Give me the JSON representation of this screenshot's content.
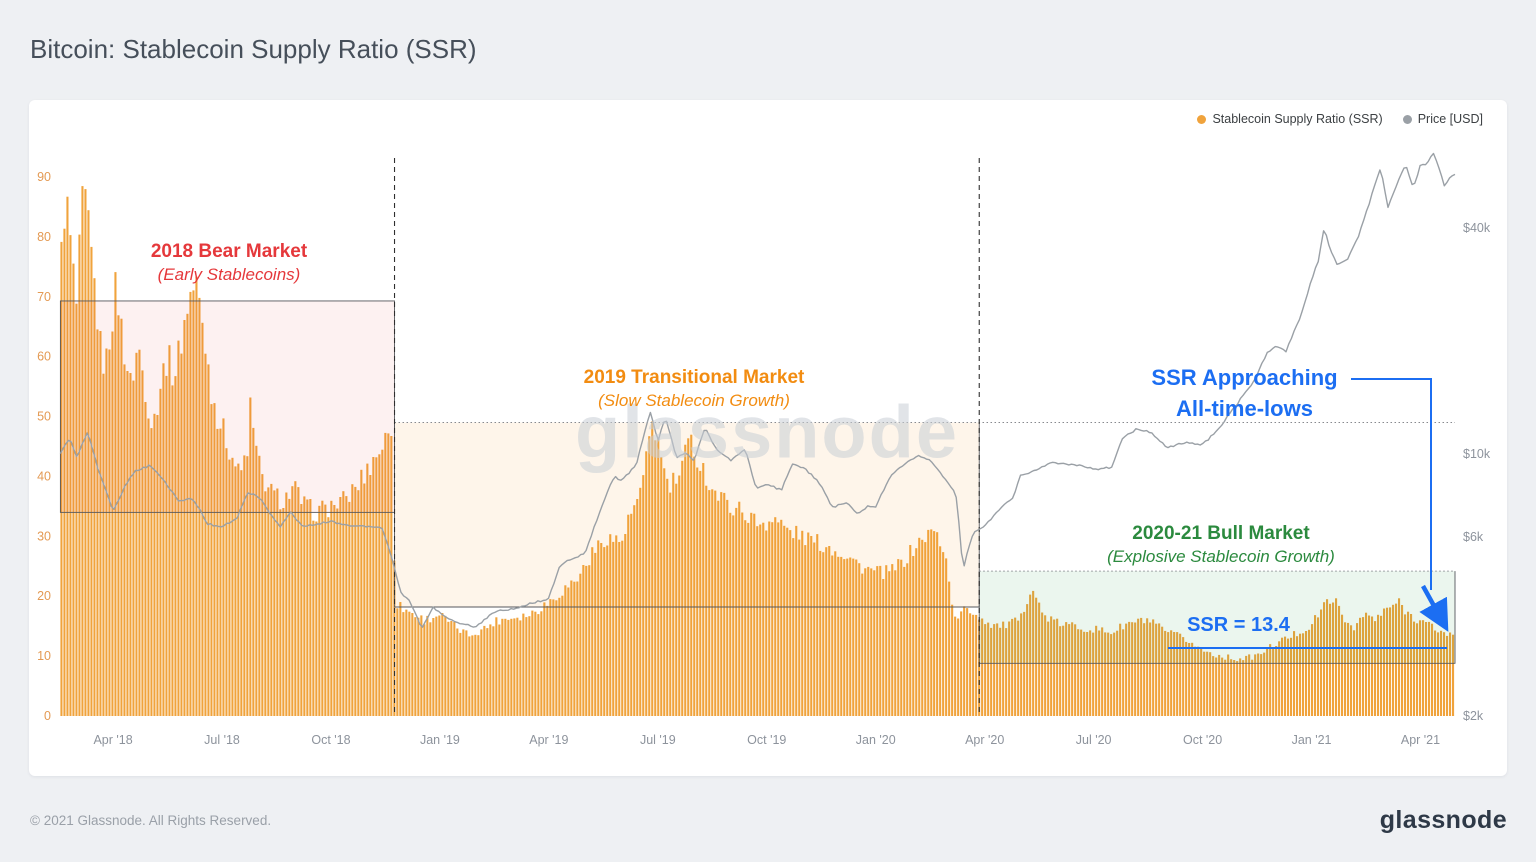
{
  "page": {
    "title": "Bitcoin: Stablecoin Supply Ratio (SSR)",
    "watermark": "glassnode",
    "footer_copyright": "© 2021 Glassnode. All Rights Reserved.",
    "footer_brand": "glassnode"
  },
  "legend": [
    {
      "label": "Stablecoin Supply Ratio (SSR)",
      "color": "#f0a33c"
    },
    {
      "label": "Price [USD]",
      "color": "#9aa0a6"
    }
  ],
  "annotations": {
    "bear_title": "2018 Bear Market",
    "bear_sub": "(Early Stablecoins)",
    "bear_color": "#e5383b",
    "transitional_title": "2019 Transitional Market",
    "transitional_sub": "(Slow Stablecoin Growth)",
    "transitional_color": "#f28c11",
    "bull_title": "2020-21 Bull Market",
    "bull_sub": "(Explosive Stablecoin Growth)",
    "bull_color": "#2b8a3e",
    "ssr_approaching_line1": "SSR Approaching",
    "ssr_approaching_line2": "All-time-lows",
    "ssr_value": "SSR = 13.4",
    "callout_color": "#1c6ef2"
  },
  "chart_data": {
    "type": [
      "bar",
      "line"
    ],
    "title": "Bitcoin: Stablecoin Supply Ratio (SSR)",
    "x_axis": {
      "unit": "months_since_2018-01",
      "range": [
        1.55,
        39.95
      ],
      "ticks": [
        {
          "t": 3,
          "label": "Apr '18"
        },
        {
          "t": 6,
          "label": "Jul '18"
        },
        {
          "t": 9,
          "label": "Oct '18"
        },
        {
          "t": 12,
          "label": "Jan '19"
        },
        {
          "t": 15,
          "label": "Apr '19"
        },
        {
          "t": 18,
          "label": "Jul '19"
        },
        {
          "t": 21,
          "label": "Oct '19"
        },
        {
          "t": 24,
          "label": "Jan '20"
        },
        {
          "t": 27,
          "label": "Apr '20"
        },
        {
          "t": 30,
          "label": "Jul '20"
        },
        {
          "t": 33,
          "label": "Oct '20"
        },
        {
          "t": 36,
          "label": "Jan '21"
        },
        {
          "t": 39,
          "label": "Apr '21"
        }
      ]
    },
    "y_left": {
      "label": "Stablecoin Supply Ratio (SSR)",
      "range": [
        0,
        90
      ],
      "ticks": [
        0,
        10,
        20,
        30,
        40,
        50,
        60,
        70,
        80,
        90
      ],
      "color": "#e49a53"
    },
    "y_right": {
      "label": "Price [USD]",
      "scale": "log",
      "ticks": [
        {
          "usd": 2000,
          "label": "$2k"
        },
        {
          "usd": 6000,
          "label": "$6k"
        },
        {
          "usd": 10000,
          "label": "$10k"
        },
        {
          "usd": 40000,
          "label": "$40k"
        }
      ],
      "color": "#8d939c"
    },
    "grid": false,
    "legend_position": "top-right",
    "vlines": [
      10.75,
      26.85
    ],
    "dotted_hlines": [
      {
        "v": 49,
        "t0": 10.75,
        "t1": 39.95
      },
      {
        "v": 24.2,
        "t0": 26.85,
        "t1": 39.95
      }
    ],
    "regions": [
      {
        "label": "2018 Bear Market (Early Stablecoins)",
        "t0": 1.55,
        "t1": 10.75,
        "v0": 34,
        "v1": 69.3,
        "fill": "rgba(230,60,60,0.07)",
        "top": "solid"
      },
      {
        "label": "2019 Transitional Market (Slow Stablecoin Growth)",
        "t0": 10.75,
        "t1": 26.85,
        "v0": 18.2,
        "v1": 49,
        "fill": "rgba(242,160,50,0.10)",
        "top": "dotted"
      },
      {
        "label": "2020-21 Bull Market (Explosive Stablecoin Growth)",
        "t0": 26.85,
        "t1": 39.95,
        "v0": 8.8,
        "v1": 24.2,
        "fill": "rgba(60,170,90,0.10)",
        "top": "dotted"
      }
    ],
    "series": [
      {
        "name": "Stablecoin Supply Ratio (SSR)",
        "type": "bar",
        "color": "#f0a33c",
        "last_value": 13.4,
        "points": [
          [
            1.55,
            72
          ],
          [
            1.62,
            80
          ],
          [
            1.7,
            87
          ],
          [
            1.8,
            82
          ],
          [
            1.9,
            75
          ],
          [
            2.0,
            68
          ],
          [
            2.1,
            78
          ],
          [
            2.2,
            88
          ],
          [
            2.35,
            80
          ],
          [
            2.5,
            72
          ],
          [
            2.65,
            62
          ],
          [
            2.8,
            58
          ],
          [
            2.95,
            65
          ],
          [
            3.1,
            72
          ],
          [
            3.3,
            62
          ],
          [
            3.5,
            55
          ],
          [
            3.7,
            62
          ],
          [
            3.9,
            55
          ],
          [
            4.1,
            48
          ],
          [
            4.3,
            55
          ],
          [
            4.5,
            60
          ],
          [
            4.7,
            57
          ],
          [
            4.9,
            63
          ],
          [
            5.1,
            70
          ],
          [
            5.3,
            72
          ],
          [
            5.5,
            65
          ],
          [
            5.7,
            55
          ],
          [
            5.9,
            50
          ],
          [
            6.2,
            45
          ],
          [
            6.5,
            40
          ],
          [
            6.7,
            44
          ],
          [
            6.8,
            52
          ],
          [
            6.9,
            46
          ],
          [
            7.1,
            40
          ],
          [
            7.4,
            37
          ],
          [
            7.7,
            36
          ],
          [
            8.0,
            38
          ],
          [
            8.3,
            35
          ],
          [
            8.6,
            34
          ],
          [
            9.0,
            35
          ],
          [
            9.4,
            36
          ],
          [
            9.8,
            39
          ],
          [
            10.2,
            43
          ],
          [
            10.5,
            46
          ],
          [
            10.7,
            48
          ],
          [
            10.78,
            19
          ],
          [
            11.0,
            18
          ],
          [
            11.3,
            17
          ],
          [
            11.6,
            16
          ],
          [
            12.0,
            17
          ],
          [
            12.4,
            15
          ],
          [
            12.8,
            13.5
          ],
          [
            13.2,
            14.5
          ],
          [
            13.6,
            16
          ],
          [
            14.0,
            16.5
          ],
          [
            14.5,
            17
          ],
          [
            15.0,
            19
          ],
          [
            15.4,
            21
          ],
          [
            15.8,
            23
          ],
          [
            16.2,
            27
          ],
          [
            16.6,
            30
          ],
          [
            17.0,
            29
          ],
          [
            17.3,
            34
          ],
          [
            17.6,
            38
          ],
          [
            17.85,
            50
          ],
          [
            18.0,
            46
          ],
          [
            18.3,
            38
          ],
          [
            18.6,
            40
          ],
          [
            18.9,
            46
          ],
          [
            19.2,
            42
          ],
          [
            19.5,
            38
          ],
          [
            19.8,
            36
          ],
          [
            20.1,
            35
          ],
          [
            20.4,
            34
          ],
          [
            20.8,
            32
          ],
          [
            21.2,
            33
          ],
          [
            21.6,
            31
          ],
          [
            22.0,
            30
          ],
          [
            22.4,
            29
          ],
          [
            22.8,
            28
          ],
          [
            23.2,
            27
          ],
          [
            23.6,
            25
          ],
          [
            24.0,
            24
          ],
          [
            24.4,
            24
          ],
          [
            24.8,
            26
          ],
          [
            25.2,
            29
          ],
          [
            25.6,
            31
          ],
          [
            25.9,
            28
          ],
          [
            26.2,
            16
          ],
          [
            26.5,
            18
          ],
          [
            26.8,
            17
          ],
          [
            27.1,
            15.5
          ],
          [
            27.5,
            15
          ],
          [
            28.0,
            16
          ],
          [
            28.3,
            22
          ],
          [
            28.6,
            17
          ],
          [
            29.0,
            15.5
          ],
          [
            29.5,
            15
          ],
          [
            30.0,
            14.5
          ],
          [
            30.5,
            14
          ],
          [
            31.0,
            15.5
          ],
          [
            31.5,
            16
          ],
          [
            32.0,
            14
          ],
          [
            32.5,
            13
          ],
          [
            33.0,
            11
          ],
          [
            33.5,
            10
          ],
          [
            34.0,
            9.5
          ],
          [
            34.5,
            10
          ],
          [
            35.0,
            12
          ],
          [
            35.5,
            13.5
          ],
          [
            36.0,
            15
          ],
          [
            36.3,
            18
          ],
          [
            36.6,
            20
          ],
          [
            36.9,
            16
          ],
          [
            37.2,
            15
          ],
          [
            37.5,
            17
          ],
          [
            37.8,
            16
          ],
          [
            38.1,
            18
          ],
          [
            38.4,
            19
          ],
          [
            38.7,
            17
          ],
          [
            39.0,
            16
          ],
          [
            39.3,
            15
          ],
          [
            39.6,
            14
          ],
          [
            39.9,
            13.4
          ]
        ]
      },
      {
        "name": "Price [USD]",
        "type": "line",
        "color": "#9aa0a6",
        "points": [
          [
            1.55,
            10000
          ],
          [
            1.8,
            11000
          ],
          [
            2.0,
            9800
          ],
          [
            2.3,
            11400
          ],
          [
            2.6,
            9000
          ],
          [
            3.0,
            7000
          ],
          [
            3.3,
            8100
          ],
          [
            3.6,
            9000
          ],
          [
            4.0,
            9300
          ],
          [
            4.4,
            8500
          ],
          [
            4.8,
            7500
          ],
          [
            5.2,
            7600
          ],
          [
            5.6,
            6500
          ],
          [
            6.0,
            6400
          ],
          [
            6.4,
            6700
          ],
          [
            6.7,
            7900
          ],
          [
            7.0,
            7700
          ],
          [
            7.3,
            7000
          ],
          [
            7.6,
            6400
          ],
          [
            7.9,
            7000
          ],
          [
            8.2,
            6400
          ],
          [
            8.6,
            6500
          ],
          [
            9.0,
            6600
          ],
          [
            9.5,
            6450
          ],
          [
            10.0,
            6400
          ],
          [
            10.4,
            6350
          ],
          [
            10.6,
            5600
          ],
          [
            10.9,
            4300
          ],
          [
            11.2,
            4000
          ],
          [
            11.5,
            3400
          ],
          [
            11.8,
            3900
          ],
          [
            12.1,
            3700
          ],
          [
            12.5,
            3550
          ],
          [
            13.0,
            3450
          ],
          [
            13.5,
            3800
          ],
          [
            14.0,
            3850
          ],
          [
            14.5,
            4000
          ],
          [
            15.0,
            4100
          ],
          [
            15.3,
            5050
          ],
          [
            15.7,
            5300
          ],
          [
            16.0,
            5400
          ],
          [
            16.4,
            7000
          ],
          [
            16.8,
            8700
          ],
          [
            17.0,
            8500
          ],
          [
            17.4,
            9300
          ],
          [
            17.8,
            12900
          ],
          [
            18.0,
            10800
          ],
          [
            18.2,
            12500
          ],
          [
            18.5,
            9800
          ],
          [
            18.8,
            10100
          ],
          [
            19.0,
            9500
          ],
          [
            19.3,
            11800
          ],
          [
            19.6,
            10300
          ],
          [
            20.0,
            9600
          ],
          [
            20.4,
            10300
          ],
          [
            20.7,
            8100
          ],
          [
            21.0,
            8300
          ],
          [
            21.4,
            8000
          ],
          [
            21.7,
            9400
          ],
          [
            22.0,
            9200
          ],
          [
            22.4,
            8500
          ],
          [
            22.8,
            7200
          ],
          [
            23.2,
            7400
          ],
          [
            23.5,
            6900
          ],
          [
            23.8,
            7300
          ],
          [
            24.0,
            7200
          ],
          [
            24.4,
            8700
          ],
          [
            24.8,
            9400
          ],
          [
            25.2,
            9900
          ],
          [
            25.5,
            9600
          ],
          [
            25.9,
            8600
          ],
          [
            26.2,
            7900
          ],
          [
            26.4,
            4900
          ],
          [
            26.7,
            6200
          ],
          [
            27.0,
            6400
          ],
          [
            27.4,
            7100
          ],
          [
            27.8,
            7700
          ],
          [
            28.0,
            8800
          ],
          [
            28.4,
            9000
          ],
          [
            28.8,
            9500
          ],
          [
            29.2,
            9400
          ],
          [
            29.6,
            9300
          ],
          [
            30.0,
            9100
          ],
          [
            30.5,
            9200
          ],
          [
            30.8,
            11000
          ],
          [
            31.2,
            11700
          ],
          [
            31.6,
            11400
          ],
          [
            32.0,
            10400
          ],
          [
            32.5,
            10700
          ],
          [
            33.0,
            10600
          ],
          [
            33.4,
            11500
          ],
          [
            33.8,
            13000
          ],
          [
            34.0,
            13800
          ],
          [
            34.4,
            15500
          ],
          [
            34.8,
            18700
          ],
          [
            35.0,
            19400
          ],
          [
            35.3,
            18800
          ],
          [
            35.7,
            23200
          ],
          [
            36.0,
            29000
          ],
          [
            36.2,
            33000
          ],
          [
            36.35,
            40000
          ],
          [
            36.5,
            35500
          ],
          [
            36.7,
            32100
          ],
          [
            37.0,
            33100
          ],
          [
            37.3,
            38000
          ],
          [
            37.6,
            47000
          ],
          [
            37.9,
            57500
          ],
          [
            38.1,
            45200
          ],
          [
            38.4,
            54000
          ],
          [
            38.6,
            58900
          ],
          [
            38.8,
            51200
          ],
          [
            39.0,
            58800
          ],
          [
            39.2,
            59500
          ],
          [
            39.35,
            63500
          ],
          [
            39.5,
            58000
          ],
          [
            39.65,
            52000
          ],
          [
            39.9,
            55500
          ]
        ]
      }
    ]
  }
}
